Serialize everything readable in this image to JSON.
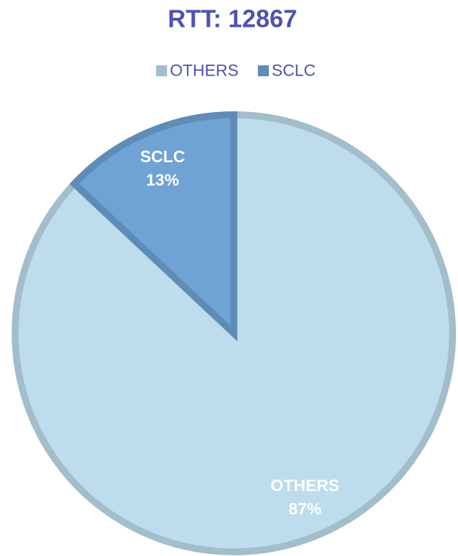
{
  "chart_data": {
    "type": "pie",
    "title": "RTT: 12867",
    "categories": [
      "OTHERS",
      "SCLC"
    ],
    "values": [
      87,
      13
    ],
    "value_labels": [
      "87%",
      "13%"
    ],
    "colors": [
      "#bddcec",
      "#6fa3d4"
    ],
    "legend": "top"
  }
}
